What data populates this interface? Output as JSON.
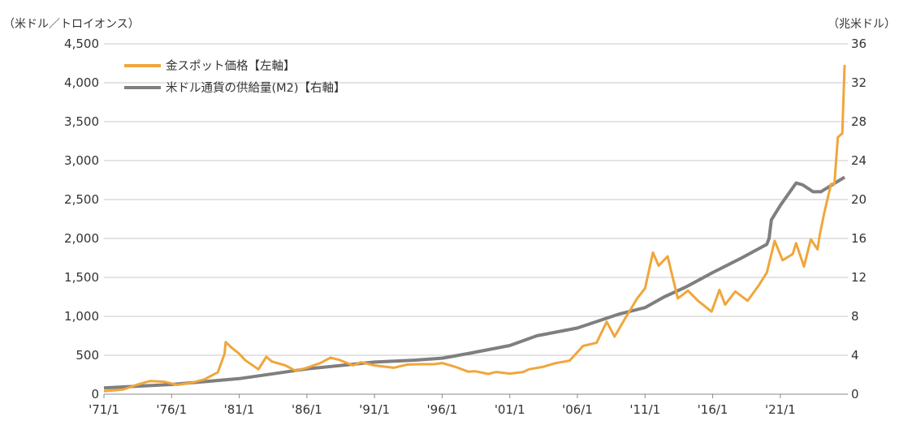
{
  "chart_data": {
    "type": "line",
    "left_axis_unit": "（米ドル／トロイオンス）",
    "right_axis_unit": "（兆米ドル）",
    "ylim_left": [
      0,
      4500
    ],
    "ylim_right": [
      0,
      36
    ],
    "yticks_left": [
      "0",
      "500",
      "1,000",
      "1,500",
      "2,000",
      "2,500",
      "3,000",
      "3,500",
      "4,000",
      "4,500"
    ],
    "yticks_right": [
      "0",
      "4",
      "8",
      "12",
      "16",
      "20",
      "24",
      "28",
      "32",
      "36"
    ],
    "xticks": [
      {
        "date": "1971-01",
        "label": "'71/1"
      },
      {
        "date": "1976-01",
        "label": "'76/1"
      },
      {
        "date": "1981-01",
        "label": "'81/1"
      },
      {
        "date": "1986-01",
        "label": "'86/1"
      },
      {
        "date": "1991-01",
        "label": "'91/1"
      },
      {
        "date": "1996-01",
        "label": "'96/1"
      },
      {
        "date": "2001-01",
        "label": "'01/1"
      },
      {
        "date": "2006-01",
        "label": "'06/1"
      },
      {
        "date": "2011-01",
        "label": "'11/1"
      },
      {
        "date": "2016-01",
        "label": "'16/1"
      },
      {
        "date": "2021-01",
        "label": "'21/1"
      }
    ],
    "grid": true,
    "legend_position": "top-left",
    "series": [
      {
        "name": "金スポット価格【左軸】",
        "axis": "left",
        "color": "#f0a63c",
        "points": [
          [
            "1971-01",
            40
          ],
          [
            "1972-06",
            60
          ],
          [
            "1973-06",
            120
          ],
          [
            "1974-06",
            170
          ],
          [
            "1975-06",
            160
          ],
          [
            "1976-06",
            120
          ],
          [
            "1977-06",
            145
          ],
          [
            "1978-06",
            190
          ],
          [
            "1979-06",
            280
          ],
          [
            "1979-12",
            520
          ],
          [
            "1980-01",
            670
          ],
          [
            "1980-06",
            600
          ],
          [
            "1981-01",
            520
          ],
          [
            "1981-06",
            440
          ],
          [
            "1982-06",
            320
          ],
          [
            "1983-01",
            480
          ],
          [
            "1983-06",
            420
          ],
          [
            "1984-06",
            370
          ],
          [
            "1985-03",
            300
          ],
          [
            "1986-01",
            340
          ],
          [
            "1987-01",
            400
          ],
          [
            "1987-10",
            470
          ],
          [
            "1988-06",
            440
          ],
          [
            "1989-06",
            370
          ],
          [
            "1990-01",
            410
          ],
          [
            "1991-01",
            370
          ],
          [
            "1992-06",
            340
          ],
          [
            "1993-06",
            380
          ],
          [
            "1994-06",
            385
          ],
          [
            "1995-06",
            385
          ],
          [
            "1996-01",
            400
          ],
          [
            "1997-01",
            350
          ],
          [
            "1997-12",
            290
          ],
          [
            "1998-06",
            295
          ],
          [
            "1999-06",
            260
          ],
          [
            "2000-01",
            285
          ],
          [
            "2001-01",
            265
          ],
          [
            "2002-01",
            285
          ],
          [
            "2002-06",
            320
          ],
          [
            "2003-06",
            350
          ],
          [
            "2004-06",
            400
          ],
          [
            "2005-06",
            430
          ],
          [
            "2006-01",
            540
          ],
          [
            "2006-06",
            620
          ],
          [
            "2007-06",
            660
          ],
          [
            "2008-03",
            930
          ],
          [
            "2008-10",
            740
          ],
          [
            "2009-06",
            940
          ],
          [
            "2010-06",
            1230
          ],
          [
            "2011-01",
            1360
          ],
          [
            "2011-08",
            1820
          ],
          [
            "2012-01",
            1650
          ],
          [
            "2012-09",
            1770
          ],
          [
            "2013-06",
            1230
          ],
          [
            "2014-03",
            1330
          ],
          [
            "2014-12",
            1200
          ],
          [
            "2015-12",
            1060
          ],
          [
            "2016-07",
            1340
          ],
          [
            "2016-12",
            1150
          ],
          [
            "2017-09",
            1320
          ],
          [
            "2018-08",
            1200
          ],
          [
            "2019-06",
            1400
          ],
          [
            "2020-01",
            1560
          ],
          [
            "2020-08",
            1970
          ],
          [
            "2021-03",
            1720
          ],
          [
            "2021-12",
            1800
          ],
          [
            "2022-03",
            1940
          ],
          [
            "2022-10",
            1640
          ],
          [
            "2023-04",
            1990
          ],
          [
            "2023-10",
            1860
          ],
          [
            "2023-12",
            2050
          ],
          [
            "2024-04",
            2330
          ],
          [
            "2024-10",
            2700
          ],
          [
            "2025-01",
            2700
          ],
          [
            "2025-04",
            3300
          ],
          [
            "2025-08",
            3350
          ],
          [
            "2025-10",
            4230
          ]
        ]
      },
      {
        "name": "米ドル通貨の供給量(M2)【右軸】",
        "axis": "right",
        "color": "#7f7f7f",
        "points": [
          [
            "1971-01",
            0.65
          ],
          [
            "1976-01",
            1.0
          ],
          [
            "1981-01",
            1.6
          ],
          [
            "1986-01",
            2.6
          ],
          [
            "1991-01",
            3.3
          ],
          [
            "1994-01",
            3.5
          ],
          [
            "1996-01",
            3.7
          ],
          [
            "1998-01",
            4.2
          ],
          [
            "2001-01",
            5.0
          ],
          [
            "2003-01",
            6.0
          ],
          [
            "2006-01",
            6.8
          ],
          [
            "2009-01",
            8.2
          ],
          [
            "2011-01",
            8.9
          ],
          [
            "2012-06",
            10.0
          ],
          [
            "2014-01",
            11.0
          ],
          [
            "2016-01",
            12.5
          ],
          [
            "2018-01",
            13.9
          ],
          [
            "2020-01",
            15.4
          ],
          [
            "2020-03",
            16.0
          ],
          [
            "2020-05",
            17.9
          ],
          [
            "2021-01",
            19.4
          ],
          [
            "2022-03",
            21.7
          ],
          [
            "2022-09",
            21.5
          ],
          [
            "2023-06",
            20.8
          ],
          [
            "2024-01",
            20.8
          ],
          [
            "2025-10",
            22.3
          ]
        ]
      }
    ]
  }
}
